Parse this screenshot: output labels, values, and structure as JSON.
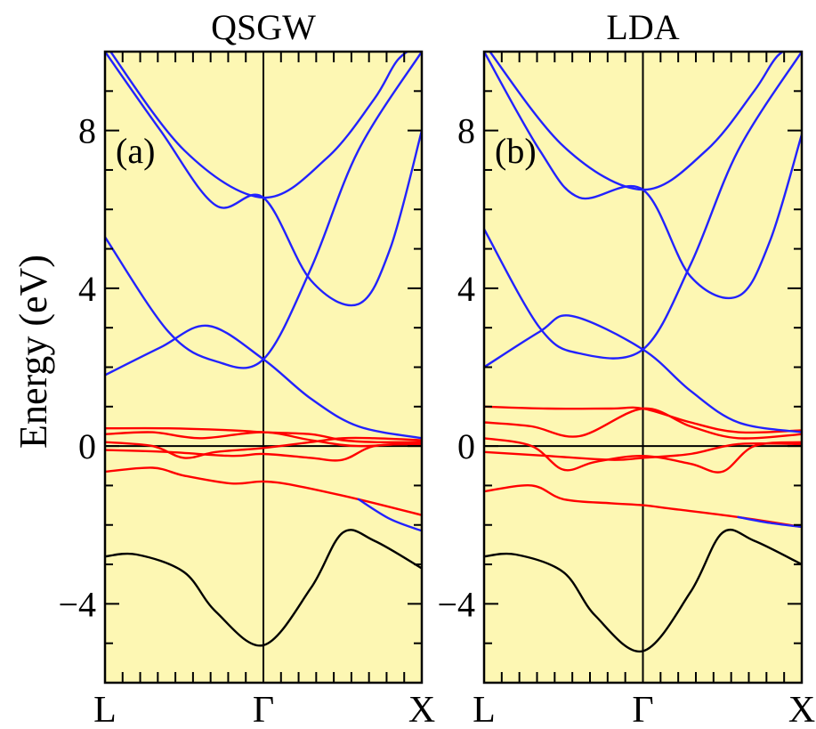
{
  "ylabel": "Energy (eV)",
  "panels": [
    {
      "title": "QSGW",
      "label": "(a)",
      "chart_data": {
        "type": "line",
        "x_ticks": [
          "L",
          "Γ",
          "X"
        ],
        "xlim": [
          0,
          2
        ],
        "ylim": [
          -6,
          10
        ],
        "y_ticks": [
          -4,
          0,
          4,
          8
        ],
        "grid": false,
        "reference_lines": {
          "horizontal": [
            0
          ],
          "vertical": [
            1
          ]
        },
        "series": [
          {
            "color": "#000000",
            "x": [
              0,
              0.2,
              0.5,
              0.7,
              1,
              1.3,
              1.5,
              1.7,
              2
            ],
            "y": [
              -2.8,
              -2.75,
              -3.2,
              -4.2,
              -5.05,
              -3.6,
              -2.2,
              -2.4,
              -3.1
            ]
          },
          {
            "color": "#ff0000",
            "x": [
              0,
              0.3,
              0.5,
              0.8,
              1,
              1.2,
              1.6,
              2
            ],
            "y": [
              -0.65,
              -0.55,
              -0.75,
              -0.95,
              -0.9,
              -1.0,
              -1.35,
              -1.75
            ]
          },
          {
            "color": "#2222ff",
            "x": [
              1.6,
              1.8,
              2
            ],
            "y": [
              -1.35,
              -1.85,
              -2.15
            ]
          },
          {
            "color": "#ff0000",
            "x": [
              0,
              0.4,
              0.8,
              1,
              1.3,
              1.5,
              1.7,
              2
            ],
            "y": [
              0.45,
              0.45,
              0.4,
              0.35,
              0.3,
              0.15,
              0.1,
              0.1
            ]
          },
          {
            "color": "#ff0000",
            "x": [
              0,
              0.3,
              0.6,
              1,
              1.3,
              1.6,
              2
            ],
            "y": [
              0.3,
              0.35,
              0.2,
              0.35,
              0.15,
              0.0,
              0.1
            ]
          },
          {
            "color": "#ff0000",
            "x": [
              0,
              0.3,
              0.5,
              0.7,
              1,
              1.3,
              1.5,
              1.7,
              2
            ],
            "y": [
              0.1,
              0.0,
              -0.3,
              -0.15,
              -0.05,
              0.1,
              0.2,
              0.2,
              0.15
            ]
          },
          {
            "color": "#ff0000",
            "x": [
              0,
              0.4,
              0.8,
              1,
              1.3,
              1.5,
              1.7,
              2
            ],
            "y": [
              -0.1,
              -0.15,
              -0.25,
              -0.2,
              -0.3,
              -0.35,
              0.0,
              0.05
            ]
          },
          {
            "color": "#2222ff",
            "x": [
              0,
              0.35,
              0.65,
              1,
              1.3,
              1.6,
              2
            ],
            "y": [
              1.8,
              2.5,
              3.05,
              2.2,
              1.2,
              0.5,
              0.2
            ]
          },
          {
            "color": "#2222ff",
            "x": [
              0,
              0.4,
              0.7,
              1,
              1.3,
              1.6,
              2
            ],
            "y": [
              5.3,
              2.9,
              2.15,
              2.2,
              4.5,
              7.5,
              10.0
            ]
          },
          {
            "color": "#2222ff",
            "x": [
              0,
              0.35,
              0.7,
              1,
              1.3,
              1.6,
              1.8,
              2
            ],
            "y": [
              10.0,
              8.0,
              6.1,
              6.3,
              4.2,
              3.6,
              5.0,
              8.0
            ]
          },
          {
            "color": "#2222ff",
            "x": [
              0,
              0.5,
              1,
              1.4,
              1.7,
              1.85,
              2
            ],
            "y": [
              10.2,
              7.5,
              6.3,
              7.3,
              8.8,
              9.8,
              10.2
            ]
          }
        ]
      }
    },
    {
      "title": "LDA",
      "label": "(b)",
      "chart_data": {
        "type": "line",
        "x_ticks": [
          "L",
          "Γ",
          "X"
        ],
        "xlim": [
          0,
          2
        ],
        "ylim": [
          -6,
          10
        ],
        "y_ticks": [
          -4,
          0,
          4,
          8
        ],
        "grid": false,
        "reference_lines": {
          "horizontal": [
            0
          ],
          "vertical": [
            1
          ]
        },
        "series": [
          {
            "color": "#000000",
            "x": [
              0,
              0.2,
              0.5,
              0.7,
              1,
              1.3,
              1.5,
              1.7,
              2
            ],
            "y": [
              -2.8,
              -2.75,
              -3.2,
              -4.3,
              -5.2,
              -3.7,
              -2.2,
              -2.4,
              -3.0
            ]
          },
          {
            "color": "#ff0000",
            "x": [
              0,
              0.3,
              0.5,
              0.8,
              1,
              1.2,
              1.6,
              2
            ],
            "y": [
              -1.15,
              -1.0,
              -1.35,
              -1.45,
              -1.5,
              -1.6,
              -1.8,
              -2.05
            ]
          },
          {
            "color": "#2222ff",
            "x": [
              1.6,
              1.8,
              2
            ],
            "y": [
              -1.8,
              -1.95,
              -2.05
            ]
          },
          {
            "color": "#ff0000",
            "x": [
              0,
              0.4,
              0.8,
              1,
              1.3,
              1.6,
              2
            ],
            "y": [
              1.0,
              0.95,
              0.95,
              0.95,
              0.6,
              0.35,
              0.4
            ]
          },
          {
            "color": "#ff0000",
            "x": [
              0,
              0.3,
              0.6,
              1,
              1.3,
              1.6,
              2
            ],
            "y": [
              0.6,
              0.5,
              0.25,
              0.95,
              0.5,
              0.2,
              0.3
            ]
          },
          {
            "color": "#ff0000",
            "x": [
              0,
              0.3,
              0.5,
              0.7,
              1,
              1.3,
              1.5,
              1.7,
              2
            ],
            "y": [
              0.2,
              0.0,
              -0.6,
              -0.4,
              -0.25,
              -0.45,
              -0.65,
              0.0,
              0.1
            ]
          },
          {
            "color": "#ff0000",
            "x": [
              0,
              0.4,
              0.8,
              1,
              1.3,
              1.6,
              2
            ],
            "y": [
              -0.15,
              -0.25,
              -0.35,
              -0.3,
              -0.2,
              0.05,
              0.05
            ]
          },
          {
            "color": "#2222ff",
            "x": [
              0,
              0.35,
              0.55,
              1,
              1.3,
              1.6,
              2
            ],
            "y": [
              2.0,
              2.9,
              3.3,
              2.45,
              1.4,
              0.6,
              0.35
            ]
          },
          {
            "color": "#2222ff",
            "x": [
              0,
              0.35,
              0.6,
              1,
              1.3,
              1.6,
              2
            ],
            "y": [
              5.5,
              3.0,
              2.35,
              2.45,
              4.6,
              7.5,
              10.0
            ]
          },
          {
            "color": "#2222ff",
            "x": [
              0,
              0.35,
              0.6,
              1,
              1.3,
              1.6,
              1.8,
              2
            ],
            "y": [
              10.0,
              7.5,
              6.3,
              6.5,
              4.3,
              3.8,
              5.2,
              7.9
            ]
          },
          {
            "color": "#2222ff",
            "x": [
              0,
              0.5,
              1,
              1.4,
              1.7,
              1.85,
              2
            ],
            "y": [
              10.2,
              7.6,
              6.5,
              7.5,
              9.0,
              9.9,
              10.2
            ]
          }
        ]
      }
    }
  ]
}
